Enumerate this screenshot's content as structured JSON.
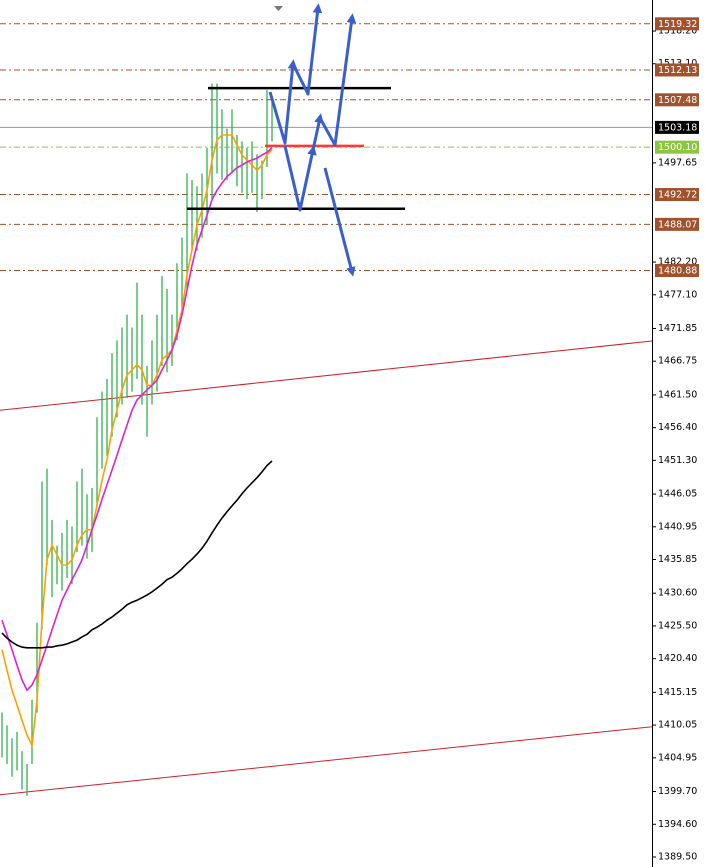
{
  "chart_data": {
    "type": "ohlc",
    "xlim": [
      -0.4,
      130
    ],
    "ylim": [
      1387.94,
      1523.03
    ],
    "yticks": [
      {
        "value": 1518.2,
        "label": "1518.20"
      },
      {
        "value": 1513.1,
        "label": "1513.10"
      },
      1497.65,
      {
        "value": 1482.2,
        "label": "1482.20"
      },
      {
        "value": 1477.1,
        "label": "1477.10"
      },
      1471.85,
      1466.75,
      {
        "value": 1461.5,
        "label": "1461.50"
      },
      {
        "value": 1456.4,
        "label": "1456.40"
      },
      {
        "value": 1451.3,
        "label": "1451.30"
      },
      1446.05,
      1440.95,
      1435.85,
      {
        "value": 1430.6,
        "label": "1430.60"
      },
      {
        "value": 1425.5,
        "label": "1425.50"
      },
      {
        "value": 1420.4,
        "label": "1420.40"
      },
      1415.15,
      1410.05,
      1404.95,
      {
        "value": 1399.7,
        "label": "1399.70"
      },
      {
        "value": 1394.6,
        "label": "1394.60"
      },
      {
        "value": 1389.5,
        "label": "1389.50"
      }
    ],
    "bars": {
      "color": "#2fb24a",
      "high": [
        1412,
        1410,
        1408,
        1409,
        1406,
        1404,
        1414,
        1426,
        1448,
        1450,
        1442,
        1438,
        1440,
        1442,
        1441,
        1448,
        1450,
        1446,
        1447,
        1458,
        1462,
        1464,
        1468,
        1470,
        1472,
        1474,
        1472,
        1479,
        1474,
        1466,
        1470,
        1474,
        1480,
        1478,
        1474,
        1482,
        1486,
        1496,
        1495,
        1494,
        1496,
        1500,
        1510,
        1510,
        1506,
        1503,
        1506,
        1502,
        1501,
        1500,
        1501,
        1499,
        1498,
        1509,
        1508
      ],
      "low": [
        1405,
        1404,
        1402,
        1403,
        1400,
        1399,
        1404,
        1412,
        1425,
        1435,
        1430,
        1432,
        1431,
        1433,
        1432,
        1437,
        1438,
        1436,
        1437,
        1444,
        1450,
        1452,
        1455,
        1458,
        1460,
        1461,
        1462,
        1464,
        1460,
        1455,
        1460,
        1462,
        1466,
        1465,
        1466,
        1470,
        1474,
        1478,
        1484,
        1484,
        1486,
        1488,
        1492,
        1496,
        1495,
        1495,
        1496,
        1494,
        1493,
        1492,
        1493,
        1490,
        1492,
        1497,
        1501
      ]
    },
    "series": [
      {
        "color": "#ffa000",
        "values": [
          1421.8,
          1418.6,
          1415.5,
          1413.2,
          1410.8,
          1408.5,
          1406.9,
          1413.9,
          1426.4,
          1435.8,
          1438.1,
          1436.6,
          1435.0,
          1435.0,
          1435.8,
          1438.1,
          1439.7,
          1440.5,
          1440.5,
          1444.3,
          1448.2,
          1451.4,
          1456.1,
          1459.1,
          1462.3,
          1464.6,
          1465.4,
          1466.2,
          1465.4,
          1463.0,
          1463.0,
          1464.6,
          1467.0,
          1467.7,
          1468.5,
          1471.6,
          1474.7,
          1480.2,
          1484.1,
          1488.0,
          1490.3,
          1493.4,
          1498.1,
          1501.2,
          1502.0,
          1502.0,
          1502.0,
          1500.4,
          1498.9,
          1498.1,
          1497.3,
          1496.5,
          1497.3,
          1498.9,
          1499.7
        ]
      },
      {
        "color": "#e21fd8",
        "values": [
          1426.4,
          1424.1,
          1421.8,
          1419.4,
          1417.1,
          1415.5,
          1416.3,
          1417.9,
          1420.2,
          1422.5,
          1424.9,
          1427.2,
          1429.5,
          1431.1,
          1432.7,
          1434.2,
          1435.8,
          1438.1,
          1440.5,
          1442.8,
          1445.2,
          1447.5,
          1449.8,
          1452.1,
          1454.5,
          1456.8,
          1459.1,
          1460.7,
          1461.5,
          1462.3,
          1463.0,
          1463.8,
          1465.4,
          1466.9,
          1468.5,
          1470.8,
          1474.0,
          1477.8,
          1481.7,
          1484.9,
          1487.2,
          1489.5,
          1491.9,
          1493.4,
          1494.5,
          1495.5,
          1496.2,
          1496.9,
          1497.3,
          1497.8,
          1498.1,
          1498.4,
          1498.9,
          1499.3,
          1500.0
        ]
      },
      {
        "color": "#000000",
        "values": [
          1424.4,
          1423.6,
          1423.0,
          1422.5,
          1422.2,
          1422.1,
          1422.1,
          1422.1,
          1422.1,
          1422.2,
          1422.2,
          1422.4,
          1422.5,
          1422.7,
          1423.0,
          1423.3,
          1423.8,
          1424.2,
          1424.9,
          1425.3,
          1425.8,
          1426.4,
          1426.9,
          1427.5,
          1428.1,
          1428.8,
          1429.2,
          1429.5,
          1429.9,
          1430.3,
          1430.8,
          1431.4,
          1432.0,
          1432.7,
          1433.1,
          1433.7,
          1434.4,
          1435.2,
          1435.9,
          1436.7,
          1437.6,
          1438.7,
          1440.0,
          1441.2,
          1442.3,
          1443.3,
          1444.2,
          1445.1,
          1446.1,
          1447.0,
          1447.8,
          1448.6,
          1449.5,
          1450.5,
          1451.2
        ]
      }
    ],
    "trend_lines": [
      {
        "color": "#d0202a",
        "start": 1459.1,
        "end": 1469.9
      },
      {
        "color": "#d0202a",
        "start": 1399.2,
        "end": 1409.8
      }
    ],
    "segments": [
      {
        "color": "#000000",
        "value": 1509.3,
        "x": [
          41.2,
          77.8
        ]
      },
      {
        "color": "#000000",
        "value": 1490.5,
        "x": [
          37,
          80.6
        ]
      },
      {
        "color": "#ff3b30",
        "value": 1500.3,
        "x": [
          52.6,
          72.4
        ]
      }
    ],
    "levels": [
      {
        "value": 1519.32,
        "color": "#a0522d"
      },
      {
        "value": 1512.13,
        "color": "#a0522d"
      },
      {
        "value": 1507.48,
        "color": "#a0522d"
      },
      {
        "value": 1500.1,
        "label": "1500.10",
        "color": "#8cc63f"
      },
      {
        "value": 1492.72,
        "color": "#a0522d"
      },
      {
        "value": 1488.07,
        "color": "#a0522d"
      },
      {
        "value": 1480.88,
        "color": "#a0522d"
      }
    ],
    "current_price": {
      "value": 1503.18,
      "color": "#000000"
    }
  }
}
